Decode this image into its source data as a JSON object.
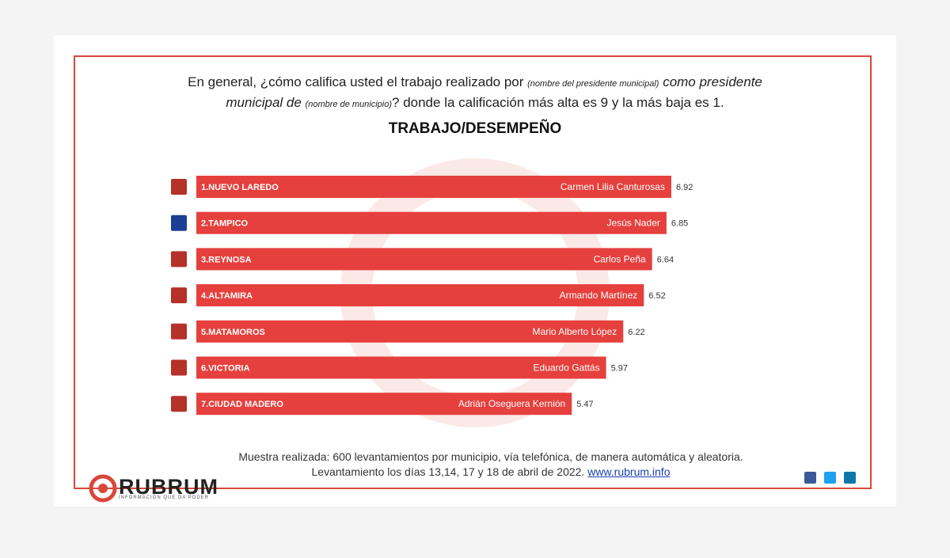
{
  "question": {
    "part1": "En general, ¿cómo califica usted el trabajo realizado por",
    "part2": "(nombre del presidente municipal)",
    "part3": "como presidente",
    "part4": "municipal de",
    "part5": "(nombre de municipio)",
    "part6": "? donde la calificación más alta es 9 y la más baja es 1."
  },
  "chart_data": {
    "type": "bar",
    "orientation": "horizontal",
    "title": "TRABAJO/DESEMPEÑO",
    "categories": [
      "1.NUEVO LAREDO",
      "2.TAMPICO",
      "3.REYNOSA",
      "4.ALTAMIRA",
      "5.MATAMOROS",
      "6.VICTORIA",
      "7.CIUDAD MADERO"
    ],
    "names": [
      "Carmen Lilia Canturosas",
      "Jesús Nader",
      "Carlos  Peña",
      "Armando Martínez",
      "Mario Alberto López",
      "Eduardo Gattás",
      "Adrián Oseguera Kernión"
    ],
    "values": [
      6.92,
      6.85,
      6.64,
      6.52,
      6.22,
      5.97,
      5.47
    ],
    "color": "#e5403d"
  },
  "footer": {
    "note": "Muestra realizada: 600 levantamientos por municipio, vía telefónica, de manera automática y aleatoria.  Levantamiento los días 13,14, 17 y 18 de abril  de 2022.",
    "link": "www.rubrum.info",
    "brand": "RUBRUM",
    "tagline": "INFORMACIÓN QUE DA PODER"
  }
}
